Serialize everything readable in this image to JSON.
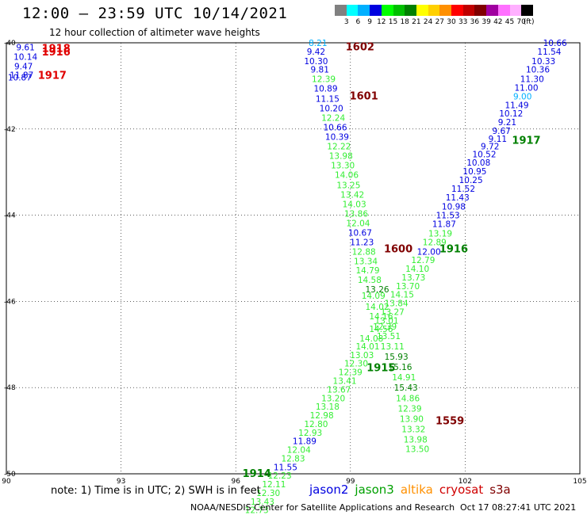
{
  "header": {
    "title": "12:00 – 23:59 UTC 10/14/2021",
    "subtitle": "12 hour collection of altimeter wave heights"
  },
  "colorbar": {
    "unit": "(ft)",
    "colors": [
      "#808080",
      "#00ffff",
      "#00b0ff",
      "#0000e0",
      "#00ff00",
      "#00c000",
      "#008000",
      "#ffff00",
      "#ffd000",
      "#ff9000",
      "#ff0000",
      "#c00000",
      "#800000",
      "#a000a0",
      "#ff70ff",
      "#ffb0ff",
      "#000000"
    ],
    "labels": [
      "3",
      "6",
      "9",
      "12",
      "15",
      "18",
      "21",
      "24",
      "27",
      "30",
      "33",
      "36",
      "39",
      "42",
      "45",
      "70"
    ]
  },
  "map": {
    "lon_ticks": [
      "90",
      "93",
      "96",
      "99",
      "102",
      "105"
    ],
    "lat_ticks": [
      "-40",
      "-42",
      "-44",
      "-46",
      "-48",
      "-50"
    ]
  },
  "note": "note:  1) Time is in UTC; 2) SWH is in feet",
  "legend": [
    {
      "name": "jason2",
      "color": "#0000e0"
    },
    {
      "name": "jason3",
      "color": "#00a000"
    },
    {
      "name": "altika",
      "color": "#ff9000"
    },
    {
      "name": "cryosat",
      "color": "#d00000"
    },
    {
      "name": "s3a",
      "color": "#800000"
    }
  ],
  "footer": {
    "credit": "NOAA/NESDIS Center for Satellite Applications and Research",
    "timestamp": "Oct 17 08:27:41 UTC 2021"
  },
  "time_labels": [
    {
      "text": "1602",
      "lon": 99.25,
      "lat": -40.08,
      "color": "#800000"
    },
    {
      "text": "1601",
      "lon": 99.35,
      "lat": -41.22,
      "color": "#800000"
    },
    {
      "text": "1600",
      "lon": 100.25,
      "lat": -44.77,
      "color": "#800000"
    },
    {
      "text": "1559",
      "lon": 101.6,
      "lat": -48.76,
      "color": "#800000"
    },
    {
      "text": "1916",
      "lon": 101.7,
      "lat": -44.77,
      "color": "#008000"
    },
    {
      "text": "1917",
      "lon": 103.6,
      "lat": -42.25,
      "color": "#008000"
    },
    {
      "text": "1915",
      "lon": 99.8,
      "lat": -47.53,
      "color": "#008000"
    },
    {
      "text": "1914",
      "lon": 96.55,
      "lat": -49.98,
      "color": "#008000"
    },
    {
      "text": "1918",
      "lon": 91.3,
      "lat": -40.12,
      "color": "#e00000"
    },
    {
      "text": "1916",
      "lon": 91.3,
      "lat": -40.2,
      "color": "#e00000"
    },
    {
      "text": "1917",
      "lon": 91.2,
      "lat": -40.74,
      "color": "#e00000"
    }
  ],
  "swh_points": [
    {
      "v": "8.21",
      "lon": 98.15,
      "lat": -40.0,
      "color": "#00b0ff"
    },
    {
      "v": "9.42",
      "lon": 98.1,
      "lat": -40.2,
      "color": "#0000e0"
    },
    {
      "v": "10.30",
      "lon": 98.1,
      "lat": -40.42,
      "color": "#0000e0"
    },
    {
      "v": "9.81",
      "lon": 98.2,
      "lat": -40.62,
      "color": "#0000e0"
    },
    {
      "v": "12.39",
      "lon": 98.3,
      "lat": -40.84,
      "color": "#33ee33"
    },
    {
      "v": "10.89",
      "lon": 98.35,
      "lat": -41.06,
      "color": "#0000e0"
    },
    {
      "v": "11.15",
      "lon": 98.4,
      "lat": -41.3,
      "color": "#0000e0"
    },
    {
      "v": "10.20",
      "lon": 98.5,
      "lat": -41.52,
      "color": "#0000e0"
    },
    {
      "v": "12.24",
      "lon": 98.55,
      "lat": -41.74,
      "color": "#33ee33"
    },
    {
      "v": "10.66",
      "lon": 98.6,
      "lat": -41.96,
      "color": "#0000e0"
    },
    {
      "v": "10.39",
      "lon": 98.65,
      "lat": -42.18,
      "color": "#0000e0"
    },
    {
      "v": "12.22",
      "lon": 98.7,
      "lat": -42.4,
      "color": "#33ee33"
    },
    {
      "v": "13.98",
      "lon": 98.75,
      "lat": -42.62,
      "color": "#33ee33"
    },
    {
      "v": "13.30",
      "lon": 98.8,
      "lat": -42.84,
      "color": "#33ee33"
    },
    {
      "v": "14.06",
      "lon": 98.9,
      "lat": -43.06,
      "color": "#33ee33"
    },
    {
      "v": "13.25",
      "lon": 98.95,
      "lat": -43.3,
      "color": "#33ee33"
    },
    {
      "v": "13.42",
      "lon": 99.05,
      "lat": -43.52,
      "color": "#33ee33"
    },
    {
      "v": "14.03",
      "lon": 99.1,
      "lat": -43.74,
      "color": "#33ee33"
    },
    {
      "v": "13.86",
      "lon": 99.15,
      "lat": -43.96,
      "color": "#33ee33"
    },
    {
      "v": "12.04",
      "lon": 99.2,
      "lat": -44.18,
      "color": "#33ee33"
    },
    {
      "v": "10.67",
      "lon": 99.25,
      "lat": -44.4,
      "color": "#0000e0"
    },
    {
      "v": "11.23",
      "lon": 99.3,
      "lat": -44.62,
      "color": "#0000e0"
    },
    {
      "v": "12.88",
      "lon": 99.35,
      "lat": -44.84,
      "color": "#33ee33"
    },
    {
      "v": "13.34",
      "lon": 99.4,
      "lat": -45.06,
      "color": "#33ee33"
    },
    {
      "v": "14.79",
      "lon": 99.45,
      "lat": -45.28,
      "color": "#33ee33"
    },
    {
      "v": "14.58",
      "lon": 99.5,
      "lat": -45.5,
      "color": "#33ee33"
    },
    {
      "v": "13.26",
      "lon": 99.7,
      "lat": -45.72,
      "color": "#008000"
    },
    {
      "v": "14.09",
      "lon": 99.6,
      "lat": -45.86,
      "color": "#33ee33"
    },
    {
      "v": "14.02",
      "lon": 99.7,
      "lat": -46.12,
      "color": "#33ee33"
    },
    {
      "v": "14.16",
      "lon": 99.8,
      "lat": -46.34,
      "color": "#33ee33"
    },
    {
      "v": "12.39",
      "lon": 99.9,
      "lat": -46.58,
      "color": "#33ee33"
    },
    {
      "v": "13.51",
      "lon": 100.0,
      "lat": -46.8,
      "color": "#33ee33"
    },
    {
      "v": "13.11",
      "lon": 100.1,
      "lat": -47.04,
      "color": "#33ee33"
    },
    {
      "v": "15.93",
      "lon": 100.2,
      "lat": -47.28,
      "color": "#008000"
    },
    {
      "v": "15.16",
      "lon": 100.3,
      "lat": -47.52,
      "color": "#008000"
    },
    {
      "v": "14.91",
      "lon": 100.4,
      "lat": -47.76,
      "color": "#33ee33"
    },
    {
      "v": "15.43",
      "lon": 100.45,
      "lat": -48.0,
      "color": "#008000"
    },
    {
      "v": "14.86",
      "lon": 100.5,
      "lat": -48.24,
      "color": "#33ee33"
    },
    {
      "v": "12.39",
      "lon": 100.55,
      "lat": -48.48,
      "color": "#33ee33"
    },
    {
      "v": "13.90",
      "lon": 100.6,
      "lat": -48.72,
      "color": "#33ee33"
    },
    {
      "v": "13.32",
      "lon": 100.65,
      "lat": -48.96,
      "color": "#33ee33"
    },
    {
      "v": "13.98",
      "lon": 100.7,
      "lat": -49.2,
      "color": "#33ee33"
    },
    {
      "v": "13.50",
      "lon": 100.75,
      "lat": -49.42,
      "color": "#33ee33"
    },
    {
      "v": "10.66",
      "lon": 104.35,
      "lat": -40.0,
      "color": "#0000e0"
    },
    {
      "v": "11.54",
      "lon": 104.2,
      "lat": -40.2,
      "color": "#0000e0"
    },
    {
      "v": "10.33",
      "lon": 104.05,
      "lat": -40.42,
      "color": "#0000e0"
    },
    {
      "v": "10.36",
      "lon": 103.9,
      "lat": -40.62,
      "color": "#0000e0"
    },
    {
      "v": "11.30",
      "lon": 103.75,
      "lat": -40.84,
      "color": "#0000e0"
    },
    {
      "v": "11.00",
      "lon": 103.6,
      "lat": -41.04,
      "color": "#0000e0"
    },
    {
      "v": "9.00",
      "lon": 103.5,
      "lat": -41.24,
      "color": "#00b0ff"
    },
    {
      "v": "11.49",
      "lon": 103.35,
      "lat": -41.44,
      "color": "#0000e0"
    },
    {
      "v": "10.12",
      "lon": 103.2,
      "lat": -41.64,
      "color": "#0000e0"
    },
    {
      "v": "9.21",
      "lon": 103.1,
      "lat": -41.84,
      "color": "#0000e0"
    },
    {
      "v": "9.67",
      "lon": 102.95,
      "lat": -42.04,
      "color": "#0000e0"
    },
    {
      "v": "9.11",
      "lon": 102.85,
      "lat": -42.22,
      "color": "#0000e0"
    },
    {
      "v": "9.72",
      "lon": 102.65,
      "lat": -42.4,
      "color": "#0000e0"
    },
    {
      "v": "10.52",
      "lon": 102.5,
      "lat": -42.58,
      "color": "#0000e0"
    },
    {
      "v": "10.08",
      "lon": 102.35,
      "lat": -42.78,
      "color": "#0000e0"
    },
    {
      "v": "10.95",
      "lon": 102.25,
      "lat": -42.98,
      "color": "#0000e0"
    },
    {
      "v": "10.25",
      "lon": 102.15,
      "lat": -43.18,
      "color": "#0000e0"
    },
    {
      "v": "11.52",
      "lon": 101.95,
      "lat": -43.38,
      "color": "#0000e0"
    },
    {
      "v": "11.43",
      "lon": 101.8,
      "lat": -43.58,
      "color": "#0000e0"
    },
    {
      "v": "10.98",
      "lon": 101.7,
      "lat": -43.8,
      "color": "#0000e0"
    },
    {
      "v": "11.53",
      "lon": 101.55,
      "lat": -44.0,
      "color": "#0000e0"
    },
    {
      "v": "11.87",
      "lon": 101.45,
      "lat": -44.2,
      "color": "#0000e0"
    },
    {
      "v": "13.19",
      "lon": 101.35,
      "lat": -44.42,
      "color": "#33ee33"
    },
    {
      "v": "12.89",
      "lon": 101.2,
      "lat": -44.62,
      "color": "#33ee33"
    },
    {
      "v": "12.00",
      "lon": 101.05,
      "lat": -44.84,
      "color": "#0000e0"
    },
    {
      "v": "12.79",
      "lon": 100.9,
      "lat": -45.04,
      "color": "#33ee33"
    },
    {
      "v": "14.10",
      "lon": 100.75,
      "lat": -45.24,
      "color": "#33ee33"
    },
    {
      "v": "13.73",
      "lon": 100.65,
      "lat": -45.44,
      "color": "#33ee33"
    },
    {
      "v": "13.70",
      "lon": 100.5,
      "lat": -45.64,
      "color": "#33ee33"
    },
    {
      "v": "14.15",
      "lon": 100.35,
      "lat": -45.84,
      "color": "#33ee33"
    },
    {
      "v": "13.84",
      "lon": 100.2,
      "lat": -46.04,
      "color": "#33ee33"
    },
    {
      "v": "13.27",
      "lon": 100.1,
      "lat": -46.24,
      "color": "#33ee33"
    },
    {
      "v": "13.01",
      "lon": 99.95,
      "lat": -46.44,
      "color": "#33ee33"
    },
    {
      "v": "14.56",
      "lon": 99.8,
      "lat": -46.64,
      "color": "#33ee33"
    },
    {
      "v": "14.08",
      "lon": 99.55,
      "lat": -46.86,
      "color": "#33ee33"
    },
    {
      "v": "14.01",
      "lon": 99.45,
      "lat": -47.04,
      "color": "#33ee33"
    },
    {
      "v": "13.03",
      "lon": 99.3,
      "lat": -47.24,
      "color": "#33ee33"
    },
    {
      "v": "12.30",
      "lon": 99.15,
      "lat": -47.44,
      "color": "#33ee33"
    },
    {
      "v": "12.39",
      "lon": 99.0,
      "lat": -47.64,
      "color": "#33ee33"
    },
    {
      "v": "13.41",
      "lon": 98.85,
      "lat": -47.84,
      "color": "#33ee33"
    },
    {
      "v": "13.67",
      "lon": 98.7,
      "lat": -48.04,
      "color": "#33ee33"
    },
    {
      "v": "13.20",
      "lon": 98.55,
      "lat": -48.24,
      "color": "#33ee33"
    },
    {
      "v": "13.18",
      "lon": 98.4,
      "lat": -48.44,
      "color": "#33ee33"
    },
    {
      "v": "12.98",
      "lon": 98.25,
      "lat": -48.64,
      "color": "#33ee33"
    },
    {
      "v": "12.80",
      "lon": 98.1,
      "lat": -48.84,
      "color": "#33ee33"
    },
    {
      "v": "12.93",
      "lon": 97.95,
      "lat": -49.04,
      "color": "#33ee33"
    },
    {
      "v": "11.89",
      "lon": 97.8,
      "lat": -49.24,
      "color": "#0000e0"
    },
    {
      "v": "12.04",
      "lon": 97.65,
      "lat": -49.44,
      "color": "#33ee33"
    },
    {
      "v": "12.83",
      "lon": 97.5,
      "lat": -49.64,
      "color": "#33ee33"
    },
    {
      "v": "11.55",
      "lon": 97.3,
      "lat": -49.84,
      "color": "#0000e0"
    },
    {
      "v": "12.23",
      "lon": 97.15,
      "lat": -50.04,
      "color": "#33ee33"
    },
    {
      "v": "12.11",
      "lon": 97.0,
      "lat": -50.24,
      "color": "#33ee33"
    },
    {
      "v": "12.30",
      "lon": 96.85,
      "lat": -50.44,
      "color": "#33ee33"
    },
    {
      "v": "13.43",
      "lon": 96.7,
      "lat": -50.64,
      "color": "#33ee33"
    },
    {
      "v": "12.73",
      "lon": 96.55,
      "lat": -50.84,
      "color": "#33ee33"
    },
    {
      "v": "9.61",
      "lon": 90.5,
      "lat": -40.1,
      "color": "#0000e0"
    },
    {
      "v": "10.14",
      "lon": 90.5,
      "lat": -40.32,
      "color": "#0000e0"
    },
    {
      "v": "9.47",
      "lon": 90.45,
      "lat": -40.54,
      "color": "#0000e0"
    },
    {
      "v": "10.87",
      "lon": 90.35,
      "lat": -40.8,
      "color": "#0000e0"
    },
    {
      "v": "11.87",
      "lon": 90.4,
      "lat": -40.74,
      "color": "#0000e0"
    }
  ]
}
